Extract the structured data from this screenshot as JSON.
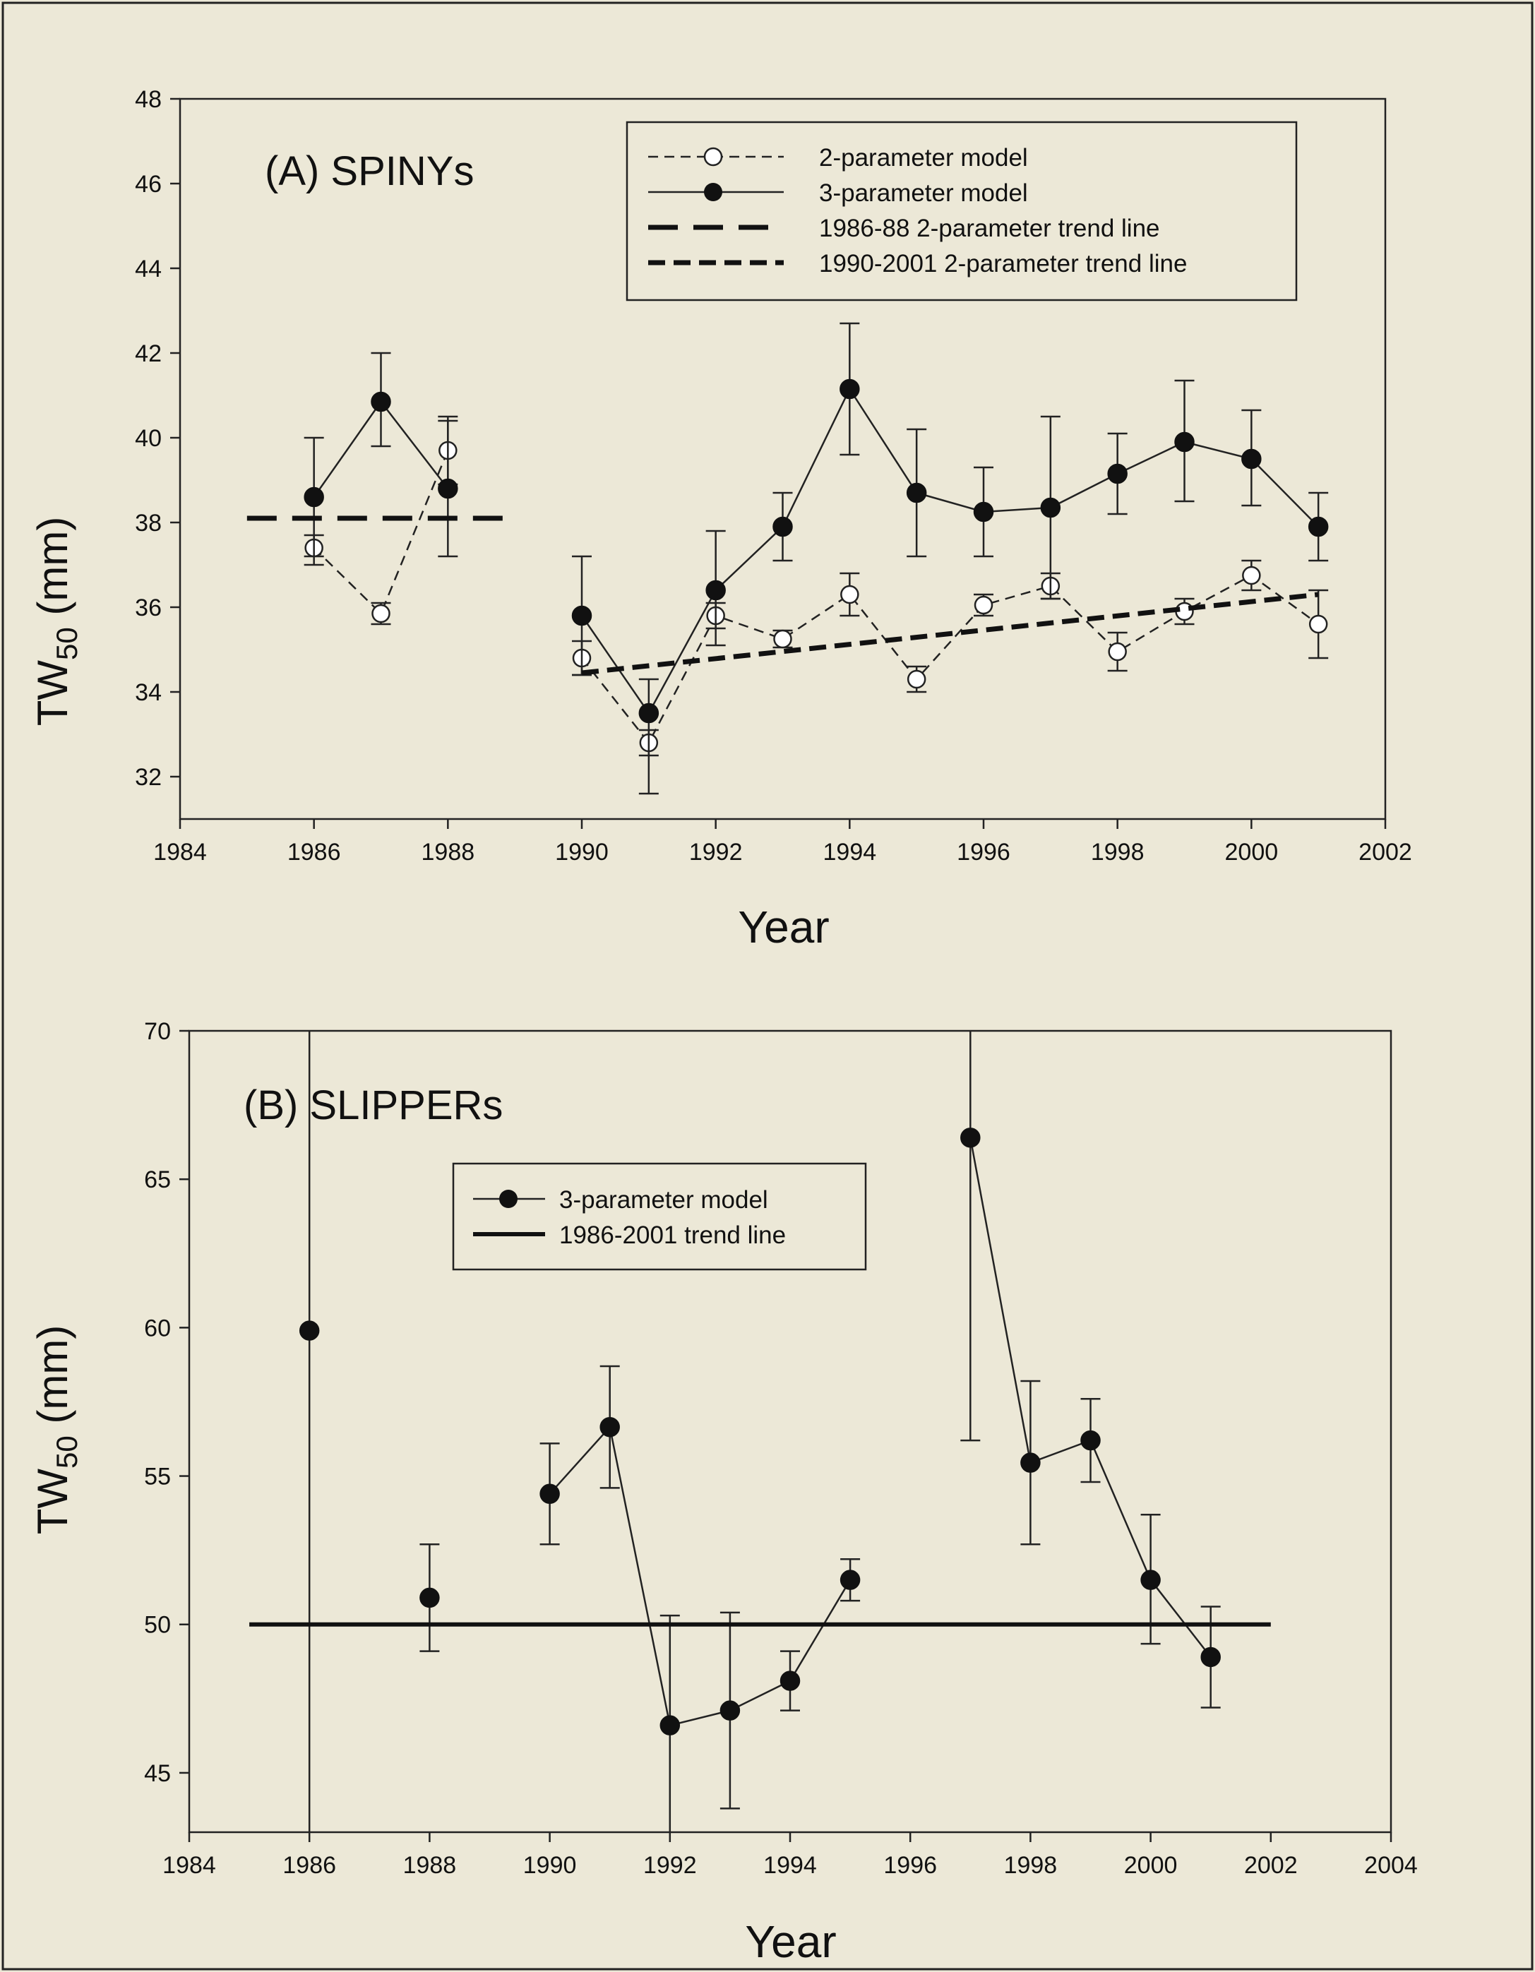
{
  "chart_data": [
    {
      "type": "line",
      "title": "(A) SPINYs",
      "xlabel": "Year",
      "ylabel": "TW50 (mm)",
      "ylabel_main": "TW",
      "ylabel_sub": "50",
      "ylabel_unit": " (mm)",
      "xlim": [
        1984,
        2002
      ],
      "ylim": [
        31,
        48
      ],
      "xticks": [
        1984,
        1986,
        1988,
        1990,
        1992,
        1994,
        1996,
        1998,
        2000,
        2002
      ],
      "yticks": [
        32,
        34,
        36,
        38,
        40,
        42,
        44,
        46,
        48
      ],
      "legend_position": "top-right",
      "series": [
        {
          "name": "2-parameter model",
          "style": "dashed-open-circle",
          "segments": [
            [
              {
                "x": 1986,
                "y": 37.4,
                "lo": 37.0,
                "hi": 37.7
              },
              {
                "x": 1987,
                "y": 35.85,
                "lo": 35.6,
                "hi": 36.1
              },
              {
                "x": 1988,
                "y": 39.7,
                "lo": 38.9,
                "hi": 40.5
              }
            ],
            [
              {
                "x": 1990,
                "y": 34.8,
                "lo": 34.4,
                "hi": 35.2
              },
              {
                "x": 1991,
                "y": 32.8,
                "lo": 32.5,
                "hi": 33.1
              },
              {
                "x": 1992,
                "y": 35.8,
                "lo": 35.5,
                "hi": 36.1
              },
              {
                "x": 1993,
                "y": 35.25,
                "lo": 35.05,
                "hi": 35.45
              },
              {
                "x": 1994,
                "y": 36.3,
                "lo": 35.8,
                "hi": 36.8
              },
              {
                "x": 1995,
                "y": 34.3,
                "lo": 34.0,
                "hi": 34.6
              },
              {
                "x": 1996,
                "y": 36.05,
                "lo": 35.8,
                "hi": 36.3
              },
              {
                "x": 1997,
                "y": 36.5,
                "lo": 36.2,
                "hi": 36.8
              },
              {
                "x": 1998,
                "y": 34.95,
                "lo": 34.5,
                "hi": 35.4
              },
              {
                "x": 1999,
                "y": 35.9,
                "lo": 35.6,
                "hi": 36.2
              },
              {
                "x": 2000,
                "y": 36.75,
                "lo": 36.4,
                "hi": 37.1
              },
              {
                "x": 2001,
                "y": 35.6,
                "lo": 34.8,
                "hi": 36.4
              }
            ]
          ]
        },
        {
          "name": "3-parameter model",
          "style": "solid-filled-circle",
          "segments": [
            [
              {
                "x": 1986,
                "y": 38.6,
                "lo": 37.2,
                "hi": 40.0
              },
              {
                "x": 1987,
                "y": 40.85,
                "lo": 39.8,
                "hi": 42.0
              },
              {
                "x": 1988,
                "y": 38.8,
                "lo": 37.2,
                "hi": 40.4
              }
            ],
            [
              {
                "x": 1990,
                "y": 35.8,
                "lo": 34.4,
                "hi": 37.2
              },
              {
                "x": 1991,
                "y": 33.5,
                "lo": 31.6,
                "hi": 34.3
              },
              {
                "x": 1992,
                "y": 36.4,
                "lo": 35.1,
                "hi": 37.8
              },
              {
                "x": 1993,
                "y": 37.9,
                "lo": 37.1,
                "hi": 38.7
              },
              {
                "x": 1994,
                "y": 41.15,
                "lo": 39.6,
                "hi": 42.7
              },
              {
                "x": 1995,
                "y": 38.7,
                "lo": 37.2,
                "hi": 40.2
              },
              {
                "x": 1996,
                "y": 38.25,
                "lo": 37.2,
                "hi": 39.3
              },
              {
                "x": 1997,
                "y": 38.35,
                "lo": 36.2,
                "hi": 40.5
              },
              {
                "x": 1998,
                "y": 39.15,
                "lo": 38.2,
                "hi": 40.1
              },
              {
                "x": 1999,
                "y": 39.9,
                "lo": 38.5,
                "hi": 41.35
              },
              {
                "x": 2000,
                "y": 39.5,
                "lo": 38.4,
                "hi": 40.65
              },
              {
                "x": 2001,
                "y": 37.9,
                "lo": 37.1,
                "hi": 38.7
              }
            ]
          ]
        },
        {
          "name": "1986-88 2-parameter trend line",
          "style": "long-dash-trend",
          "points": [
            {
              "x": 1985,
              "y": 38.1
            },
            {
              "x": 1989,
              "y": 38.1
            }
          ]
        },
        {
          "name": "1990-2001 2-parameter trend line",
          "style": "short-dash-trend",
          "points": [
            {
              "x": 1990,
              "y": 34.45
            },
            {
              "x": 2001,
              "y": 36.3
            }
          ]
        }
      ]
    },
    {
      "type": "line",
      "title": "(B) SLIPPERs",
      "xlabel": "Year",
      "ylabel": "TW50 (mm)",
      "ylabel_main": "TW",
      "ylabel_sub": "50",
      "ylabel_unit": " (mm)",
      "xlim": [
        1984,
        2004
      ],
      "ylim": [
        43,
        70
      ],
      "xticks": [
        1984,
        1986,
        1988,
        1990,
        1992,
        1994,
        1996,
        1998,
        2000,
        2002,
        2004
      ],
      "yticks": [
        45,
        50,
        55,
        60,
        65,
        70
      ],
      "legend_position": "top-center",
      "series": [
        {
          "name": "3-parameter model",
          "style": "solid-filled-circle",
          "segments": [
            [
              {
                "x": 1986,
                "y": 59.9,
                "lo": 43.0,
                "hi": 70.0
              }
            ],
            [
              {
                "x": 1988,
                "y": 50.9,
                "lo": 49.1,
                "hi": 52.7
              }
            ],
            [
              {
                "x": 1990,
                "y": 54.4,
                "lo": 52.7,
                "hi": 56.1
              },
              {
                "x": 1991,
                "y": 56.65,
                "lo": 54.6,
                "hi": 58.7
              },
              {
                "x": 1992,
                "y": 46.6,
                "lo": 43.0,
                "hi": 50.3
              },
              {
                "x": 1993,
                "y": 47.1,
                "lo": 43.8,
                "hi": 50.4
              },
              {
                "x": 1994,
                "y": 48.1,
                "lo": 47.1,
                "hi": 49.1
              },
              {
                "x": 1995,
                "y": 51.5,
                "lo": 50.8,
                "hi": 52.2
              }
            ],
            [
              {
                "x": 1997,
                "y": 66.4,
                "lo": 56.2,
                "hi": 70.0
              },
              {
                "x": 1998,
                "y": 55.45,
                "lo": 52.7,
                "hi": 58.2
              },
              {
                "x": 1999,
                "y": 56.2,
                "lo": 54.8,
                "hi": 57.6
              },
              {
                "x": 2000,
                "y": 51.5,
                "lo": 49.35,
                "hi": 53.7
              },
              {
                "x": 2001,
                "y": 48.9,
                "lo": 47.2,
                "hi": 50.6
              }
            ]
          ]
        },
        {
          "name": "1986-2001 trend line",
          "style": "solid-trend",
          "points": [
            {
              "x": 1985,
              "y": 50.0
            },
            {
              "x": 2002,
              "y": 50.0
            }
          ]
        }
      ]
    }
  ]
}
